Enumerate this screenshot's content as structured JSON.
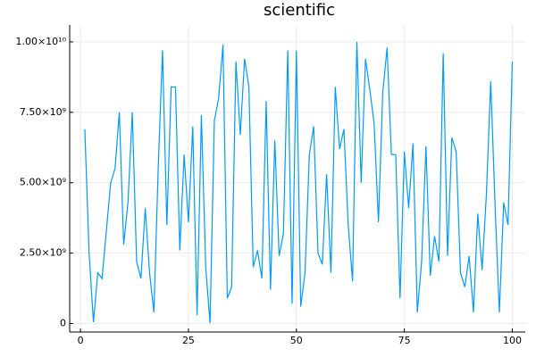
{
  "chart_data": {
    "type": "line",
    "title": "scientific",
    "x": [
      1,
      2,
      3,
      4,
      5,
      6,
      7,
      8,
      9,
      10,
      11,
      12,
      13,
      14,
      15,
      16,
      17,
      18,
      19,
      20,
      21,
      22,
      23,
      24,
      25,
      26,
      27,
      28,
      29,
      30,
      31,
      32,
      33,
      34,
      35,
      36,
      37,
      38,
      39,
      40,
      41,
      42,
      43,
      44,
      45,
      46,
      47,
      48,
      49,
      50,
      51,
      52,
      53,
      54,
      55,
      56,
      57,
      58,
      59,
      60,
      61,
      62,
      63,
      64,
      65,
      66,
      67,
      68,
      69,
      70,
      71,
      72,
      73,
      74,
      75,
      76,
      77,
      78,
      79,
      80,
      81,
      82,
      83,
      84,
      85,
      86,
      87,
      88,
      89,
      90,
      91,
      92,
      93,
      94,
      95,
      96,
      97,
      98,
      99,
      100
    ],
    "series": [
      {
        "color": "#009af9",
        "values": [
          6900000000.0,
          2500000000.0,
          50000000.0,
          1800000000.0,
          1600000000.0,
          3300000000.0,
          5000000000.0,
          5500000000.0,
          7500000000.0,
          2800000000.0,
          4300000000.0,
          7500000000.0,
          2200000000.0,
          1600000000.0,
          4100000000.0,
          1800000000.0,
          400000000.0,
          5500000000.0,
          9700000000.0,
          3500000000.0,
          8400000000.0,
          8400000000.0,
          2600000000.0,
          6000000000.0,
          3600000000.0,
          7000000000.0,
          300000000.0,
          7400000000.0,
          2000000000.0,
          20000000.0,
          7200000000.0,
          8000000000.0,
          9900000000.0,
          900000000.0,
          1300000000.0,
          9300000000.0,
          6700000000.0,
          9400000000.0,
          8400000000.0,
          2000000000.0,
          2600000000.0,
          1600000000.0,
          7900000000.0,
          1200000000.0,
          6500000000.0,
          2400000000.0,
          3200000000.0,
          9700000000.0,
          700000000.0,
          9700000000.0,
          600000000.0,
          1800000000.0,
          6000000000.0,
          7000000000.0,
          2500000000.0,
          2100000000.0,
          5300000000.0,
          1800000000.0,
          8400000000.0,
          6200000000.0,
          6900000000.0,
          3500000000.0,
          1500000000.0,
          10000000000.0,
          5000000000.0,
          9400000000.0,
          8300000000.0,
          7100000000.0,
          3600000000.0,
          8200000000.0,
          9800000000.0,
          6000000000.0,
          6000000000.0,
          900000000.0,
          6100000000.0,
          4100000000.0,
          6400000000.0,
          400000000.0,
          2200000000.0,
          6300000000.0,
          1700000000.0,
          3100000000.0,
          2200000000.0,
          9600000000.0,
          2400000000.0,
          6600000000.0,
          6100000000.0,
          1800000000.0,
          1300000000.0,
          2400000000.0,
          400000000.0,
          3900000000.0,
          1900000000.0,
          4600000000.0,
          8600000000.0,
          4200000000.0,
          400000000.0,
          4300000000.0,
          3500000000.0,
          9300000000.0
        ]
      }
    ],
    "xlim": [
      -2.5,
      103
    ],
    "xticks": [
      0,
      25,
      50,
      75,
      100
    ],
    "ylim": [
      -300000000.0,
      10600000000.0
    ],
    "yticks": [
      0,
      {
        "value": 2500000000.0,
        "label": "2.50×10⁹"
      },
      {
        "value": 5000000000.0,
        "label": "5.00×10⁹"
      },
      {
        "value": 7500000000.0,
        "label": "7.50×10⁹"
      },
      {
        "value": 10000000000.0,
        "label": "1.00×10¹⁰"
      }
    ],
    "grid": true
  }
}
